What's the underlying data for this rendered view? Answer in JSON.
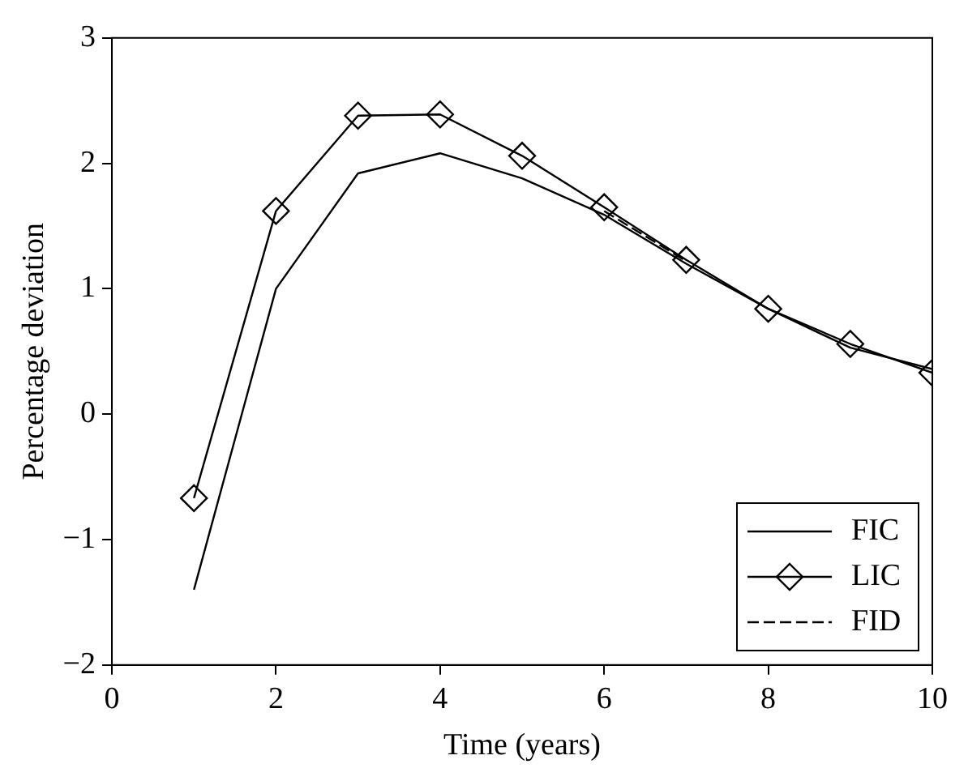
{
  "chart_data": {
    "type": "line",
    "xlabel": "Time (years)",
    "ylabel": "Percentage deviation",
    "x": [
      1,
      2,
      3,
      4,
      5,
      6,
      7,
      8,
      9,
      10
    ],
    "series": [
      {
        "name": "FIC",
        "color": "#000000",
        "marker": "none",
        "line_style": "solid",
        "values": [
          -1.4,
          1.0,
          1.92,
          2.08,
          1.88,
          1.59,
          1.2,
          0.84,
          0.53,
          0.36
        ]
      },
      {
        "name": "LIC",
        "color": "#000000",
        "marker": "diamond",
        "line_style": "solid",
        "values": [
          -0.67,
          1.62,
          2.38,
          2.39,
          2.06,
          1.65,
          1.23,
          0.84,
          0.56,
          0.33
        ]
      },
      {
        "name": "FID",
        "color": "#000000",
        "marker": "none",
        "line_style": "dashed",
        "values": [
          null,
          null,
          null,
          null,
          null,
          1.62,
          1.22,
          null,
          null,
          null
        ]
      }
    ],
    "xlim": [
      0,
      10
    ],
    "xticks": [
      0,
      2,
      4,
      6,
      8,
      10
    ],
    "ylim": [
      -2,
      3
    ],
    "yticks": [
      -2,
      -1,
      0,
      1,
      2,
      3
    ],
    "grid": false,
    "legend": "bottom right"
  }
}
